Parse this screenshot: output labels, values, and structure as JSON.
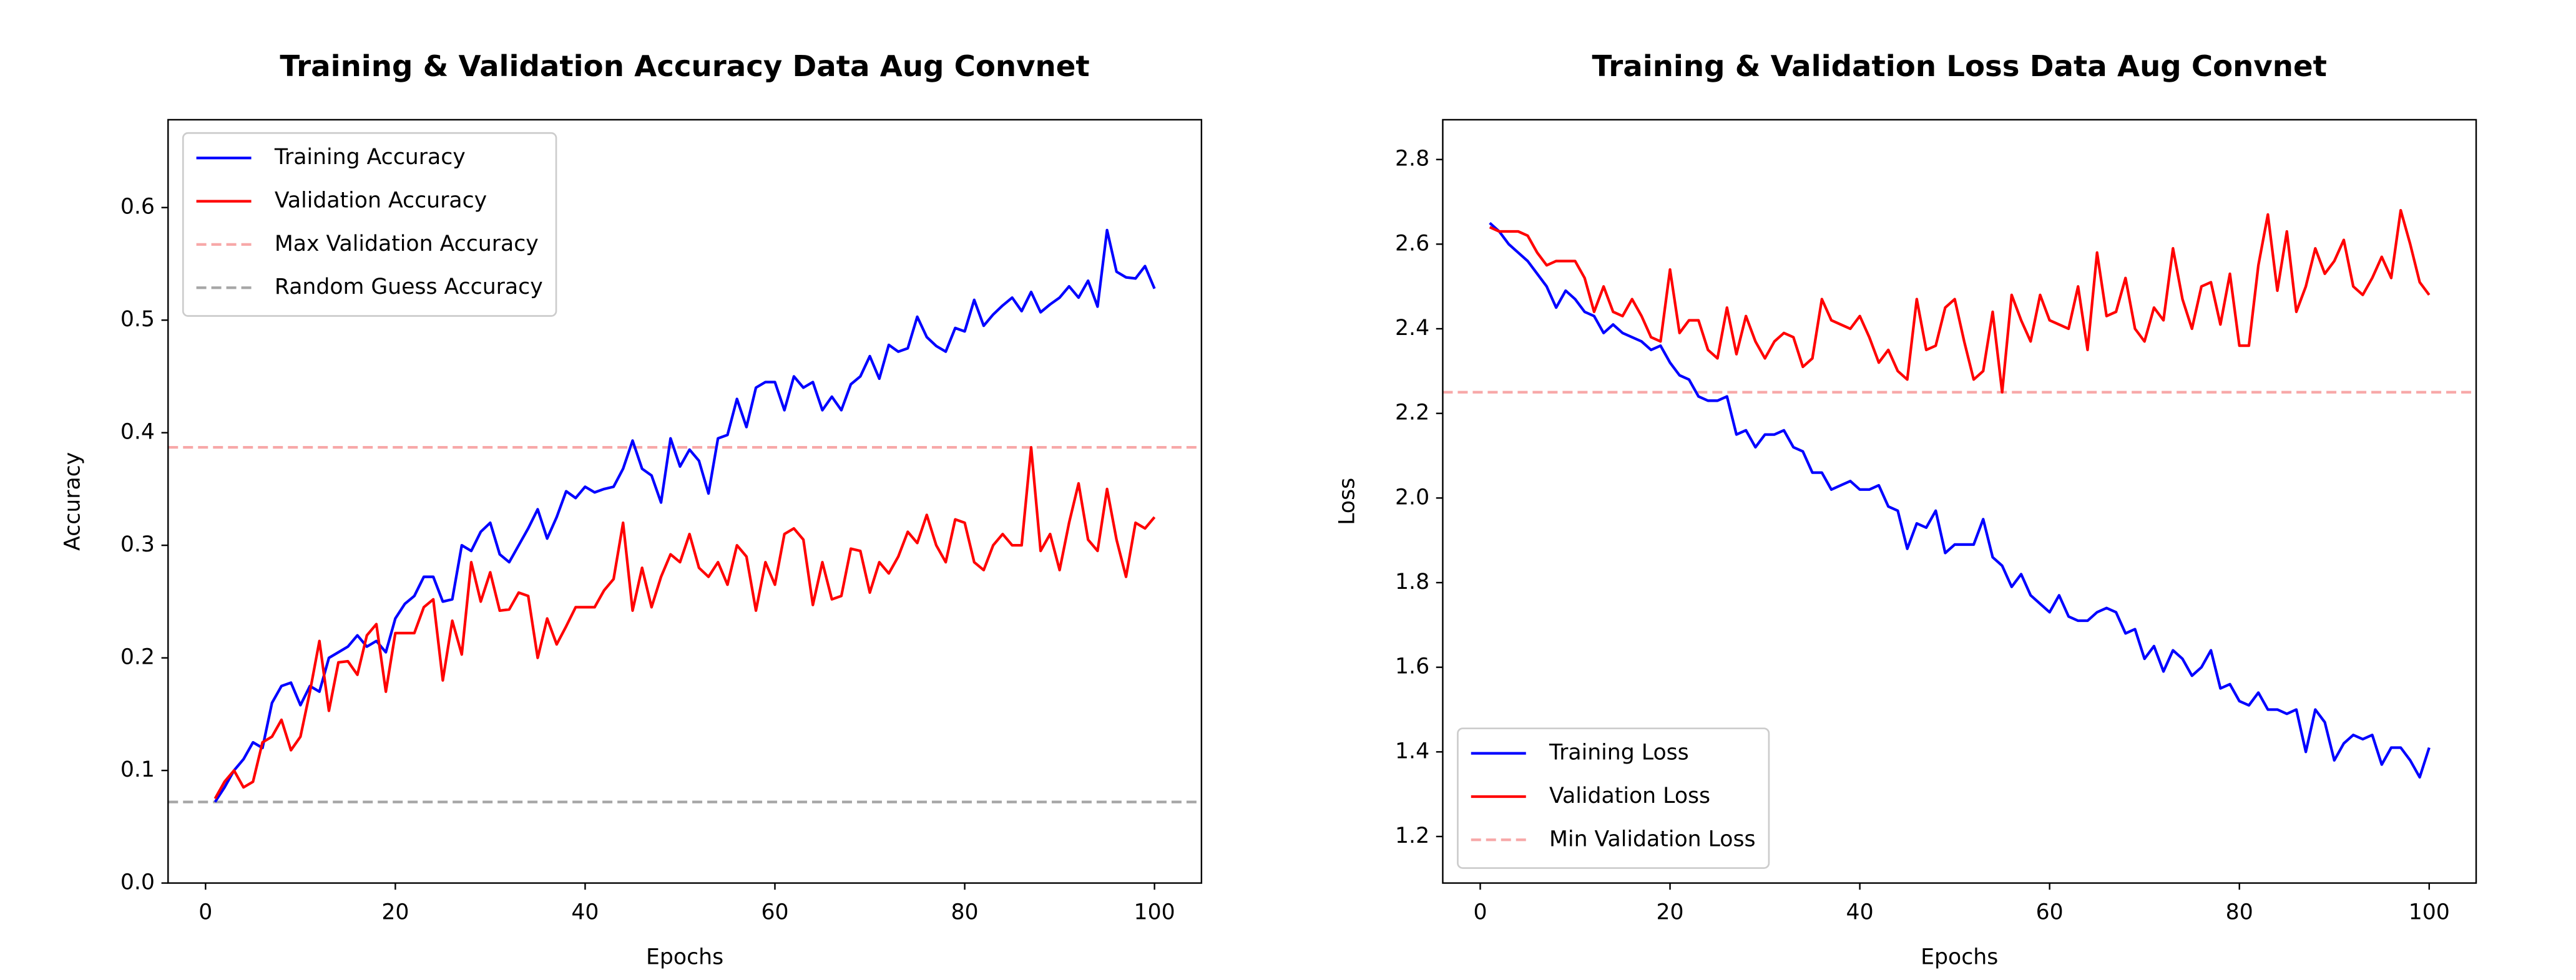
{
  "chart_data": [
    {
      "type": "line",
      "title": "Training & Validation Accuracy Data Aug Convnet",
      "xlabel": "Epochs",
      "ylabel": "Accuracy",
      "x": [
        1,
        2,
        3,
        4,
        5,
        6,
        7,
        8,
        9,
        10,
        11,
        12,
        13,
        14,
        15,
        16,
        17,
        18,
        19,
        20,
        21,
        22,
        23,
        24,
        25,
        26,
        27,
        28,
        29,
        30,
        31,
        32,
        33,
        34,
        35,
        36,
        37,
        38,
        39,
        40,
        41,
        42,
        43,
        44,
        45,
        46,
        47,
        48,
        49,
        50,
        51,
        52,
        53,
        54,
        55,
        56,
        57,
        58,
        59,
        60,
        61,
        62,
        63,
        64,
        65,
        66,
        67,
        68,
        69,
        70,
        71,
        72,
        73,
        74,
        75,
        76,
        77,
        78,
        79,
        80,
        81,
        82,
        83,
        84,
        85,
        86,
        87,
        88,
        89,
        90,
        91,
        92,
        93,
        94,
        95,
        96,
        97,
        98,
        99,
        100
      ],
      "xlim": [
        -3.95,
        104.95
      ],
      "xticks": [
        0,
        20,
        40,
        60,
        80,
        100
      ],
      "ylim": [
        0,
        0.678
      ],
      "yticks": [
        {
          "value": 0,
          "label": "0.0"
        },
        0.1,
        0.2,
        0.3,
        0.4,
        0.5,
        0.6
      ],
      "legend": "upper left",
      "series": [
        {
          "name": "Training Accuracy",
          "color": "#0000ff",
          "values": [
            0.072,
            0.085,
            0.1,
            0.11,
            0.125,
            0.12,
            0.16,
            0.175,
            0.178,
            0.158,
            0.175,
            0.17,
            0.2,
            0.205,
            0.21,
            0.22,
            0.21,
            0.215,
            0.205,
            0.235,
            0.248,
            0.255,
            0.272,
            0.272,
            0.25,
            0.252,
            0.3,
            0.295,
            0.312,
            0.32,
            0.292,
            0.285,
            0.3,
            0.315,
            0.332,
            0.306,
            0.325,
            0.348,
            0.342,
            0.352,
            0.347,
            0.35,
            0.352,
            0.368,
            0.393,
            0.368,
            0.362,
            0.338,
            0.395,
            0.37,
            0.385,
            0.375,
            0.346,
            0.395,
            0.398,
            0.43,
            0.405,
            0.44,
            0.445,
            0.445,
            0.42,
            0.45,
            0.44,
            0.445,
            0.42,
            0.432,
            0.42,
            0.443,
            0.45,
            0.468,
            0.448,
            0.478,
            0.472,
            0.475,
            0.503,
            0.485,
            0.477,
            0.472,
            0.493,
            0.49,
            0.518,
            0.495,
            0.505,
            0.513,
            0.52,
            0.508,
            0.525,
            0.507,
            0.514,
            0.52,
            0.53,
            0.52,
            0.535,
            0.512,
            0.58,
            0.543,
            0.538,
            0.537,
            0.548,
            0.528
          ]
        },
        {
          "name": "Validation Accuracy",
          "color": "#ff0000",
          "values": [
            0.075,
            0.09,
            0.1,
            0.085,
            0.09,
            0.125,
            0.13,
            0.145,
            0.118,
            0.13,
            0.17,
            0.215,
            0.153,
            0.196,
            0.197,
            0.185,
            0.22,
            0.23,
            0.17,
            0.222,
            0.222,
            0.222,
            0.245,
            0.252,
            0.18,
            0.233,
            0.203,
            0.285,
            0.25,
            0.276,
            0.242,
            0.243,
            0.258,
            0.255,
            0.2,
            0.235,
            0.212,
            0.228,
            0.245,
            0.245,
            0.245,
            0.26,
            0.27,
            0.32,
            0.242,
            0.28,
            0.245,
            0.272,
            0.292,
            0.285,
            0.31,
            0.28,
            0.272,
            0.285,
            0.265,
            0.3,
            0.29,
            0.242,
            0.285,
            0.265,
            0.31,
            0.315,
            0.305,
            0.247,
            0.285,
            0.252,
            0.255,
            0.297,
            0.295,
            0.258,
            0.285,
            0.275,
            0.29,
            0.312,
            0.302,
            0.327,
            0.3,
            0.285,
            0.323,
            0.32,
            0.285,
            0.278,
            0.3,
            0.31,
            0.3,
            0.3,
            0.387,
            0.295,
            0.31,
            0.278,
            0.32,
            0.355,
            0.305,
            0.295,
            0.35,
            0.305,
            0.272,
            0.32,
            0.315,
            0.325
          ]
        }
      ],
      "reference_lines": [
        {
          "name": "Max Validation Accuracy",
          "color": "#f7a8a8",
          "value": 0.387,
          "style": "dashed"
        },
        {
          "name": "Random Guess Accuracy",
          "color": "#a6a6a6",
          "value": 0.072,
          "style": "dashed"
        }
      ]
    },
    {
      "type": "line",
      "title": "Training & Validation Loss Data Aug Convnet",
      "xlabel": "Epochs",
      "ylabel": "Loss",
      "x": [
        1,
        2,
        3,
        4,
        5,
        6,
        7,
        8,
        9,
        10,
        11,
        12,
        13,
        14,
        15,
        16,
        17,
        18,
        19,
        20,
        21,
        22,
        23,
        24,
        25,
        26,
        27,
        28,
        29,
        30,
        31,
        32,
        33,
        34,
        35,
        36,
        37,
        38,
        39,
        40,
        41,
        42,
        43,
        44,
        45,
        46,
        47,
        48,
        49,
        50,
        51,
        52,
        53,
        54,
        55,
        56,
        57,
        58,
        59,
        60,
        61,
        62,
        63,
        64,
        65,
        66,
        67,
        68,
        69,
        70,
        71,
        72,
        73,
        74,
        75,
        76,
        77,
        78,
        79,
        80,
        81,
        82,
        83,
        84,
        85,
        86,
        87,
        88,
        89,
        90,
        91,
        92,
        93,
        94,
        95,
        96,
        97,
        98,
        99,
        100
      ],
      "xlim": [
        -3.95,
        104.95
      ],
      "xticks": [
        0,
        20,
        40,
        60,
        80,
        100
      ],
      "ylim": [
        1.09,
        2.894
      ],
      "yticks": [
        1.2,
        1.4,
        1.6,
        1.8,
        {
          "value": 2,
          "label": "2.0"
        },
        2.2,
        2.4,
        2.6,
        2.8
      ],
      "legend": "lower left",
      "series": [
        {
          "name": "Training Loss",
          "color": "#0000ff",
          "values": [
            2.65,
            2.63,
            2.6,
            2.58,
            2.56,
            2.53,
            2.5,
            2.45,
            2.49,
            2.47,
            2.44,
            2.43,
            2.39,
            2.41,
            2.39,
            2.38,
            2.37,
            2.35,
            2.36,
            2.32,
            2.29,
            2.28,
            2.24,
            2.23,
            2.23,
            2.24,
            2.15,
            2.16,
            2.12,
            2.15,
            2.15,
            2.16,
            2.12,
            2.11,
            2.06,
            2.06,
            2.02,
            2.03,
            2.04,
            2.02,
            2.02,
            2.03,
            1.98,
            1.97,
            1.88,
            1.94,
            1.93,
            1.97,
            1.87,
            1.89,
            1.89,
            1.89,
            1.95,
            1.86,
            1.84,
            1.79,
            1.82,
            1.77,
            1.75,
            1.73,
            1.77,
            1.72,
            1.71,
            1.71,
            1.73,
            1.74,
            1.73,
            1.68,
            1.69,
            1.62,
            1.65,
            1.59,
            1.64,
            1.62,
            1.58,
            1.6,
            1.64,
            1.55,
            1.56,
            1.52,
            1.51,
            1.54,
            1.5,
            1.5,
            1.49,
            1.5,
            1.4,
            1.5,
            1.47,
            1.38,
            1.42,
            1.44,
            1.43,
            1.44,
            1.37,
            1.41,
            1.41,
            1.38,
            1.34,
            1.41
          ]
        },
        {
          "name": "Validation Loss",
          "color": "#ff0000",
          "values": [
            2.64,
            2.63,
            2.63,
            2.63,
            2.62,
            2.58,
            2.55,
            2.56,
            2.56,
            2.56,
            2.52,
            2.44,
            2.5,
            2.44,
            2.43,
            2.47,
            2.43,
            2.38,
            2.37,
            2.54,
            2.39,
            2.42,
            2.42,
            2.35,
            2.33,
            2.45,
            2.34,
            2.43,
            2.37,
            2.33,
            2.37,
            2.39,
            2.38,
            2.31,
            2.33,
            2.47,
            2.42,
            2.41,
            2.4,
            2.43,
            2.38,
            2.32,
            2.35,
            2.3,
            2.28,
            2.47,
            2.35,
            2.36,
            2.45,
            2.47,
            2.37,
            2.28,
            2.3,
            2.44,
            2.25,
            2.48,
            2.42,
            2.37,
            2.48,
            2.42,
            2.41,
            2.4,
            2.5,
            2.35,
            2.58,
            2.43,
            2.44,
            2.52,
            2.4,
            2.37,
            2.45,
            2.42,
            2.59,
            2.47,
            2.4,
            2.5,
            2.51,
            2.41,
            2.53,
            2.36,
            2.36,
            2.55,
            2.67,
            2.49,
            2.63,
            2.44,
            2.5,
            2.59,
            2.53,
            2.56,
            2.61,
            2.5,
            2.48,
            2.52,
            2.57,
            2.52,
            2.68,
            2.6,
            2.51,
            2.48
          ]
        }
      ],
      "reference_lines": [
        {
          "name": "Min Validation Loss",
          "color": "#f7a8a8",
          "value": 2.25,
          "style": "dashed"
        }
      ]
    }
  ]
}
